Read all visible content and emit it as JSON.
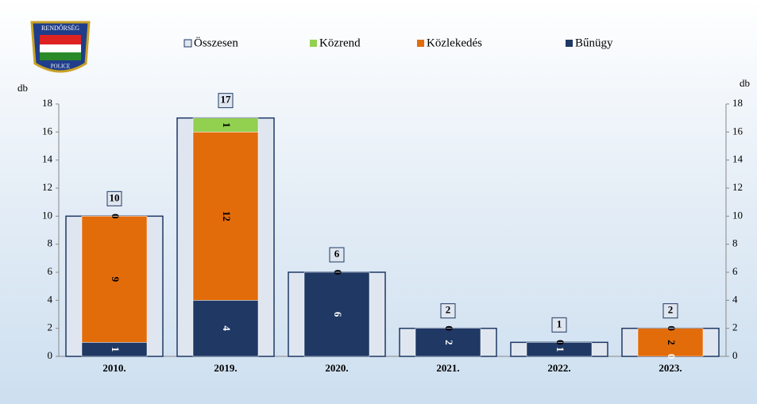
{
  "logo": {
    "top": "RENDŐRSÉG",
    "bottom": "POLICE"
  },
  "chart_data": {
    "type": "bar",
    "y_label": "db",
    "y2_label": "db",
    "categories": [
      "2010.",
      "2019.",
      "2020.",
      "2021.",
      "2022.",
      "2023."
    ],
    "series": [
      {
        "name": "Összesen",
        "color": "#dfe6f0",
        "values": [
          10,
          17,
          6,
          2,
          1,
          2
        ]
      },
      {
        "name": "Közrend",
        "color": "#92d050",
        "values": [
          0,
          1,
          0,
          0,
          0,
          0
        ]
      },
      {
        "name": "Közlekedés",
        "color": "#e36c0a",
        "values": [
          9,
          12,
          0,
          0,
          0,
          2
        ]
      },
      {
        "name": "Bűnügy",
        "color": "#1f3864",
        "values": [
          1,
          4,
          6,
          2,
          1,
          0
        ]
      }
    ],
    "ylim": [
      0,
      18
    ],
    "yticks": [
      0,
      2,
      4,
      6,
      8,
      10,
      12,
      14,
      16,
      18
    ],
    "y2lim": [
      0,
      18
    ],
    "y2ticks": [
      0,
      2,
      4,
      6,
      8,
      10,
      12,
      14,
      16,
      18
    ]
  }
}
